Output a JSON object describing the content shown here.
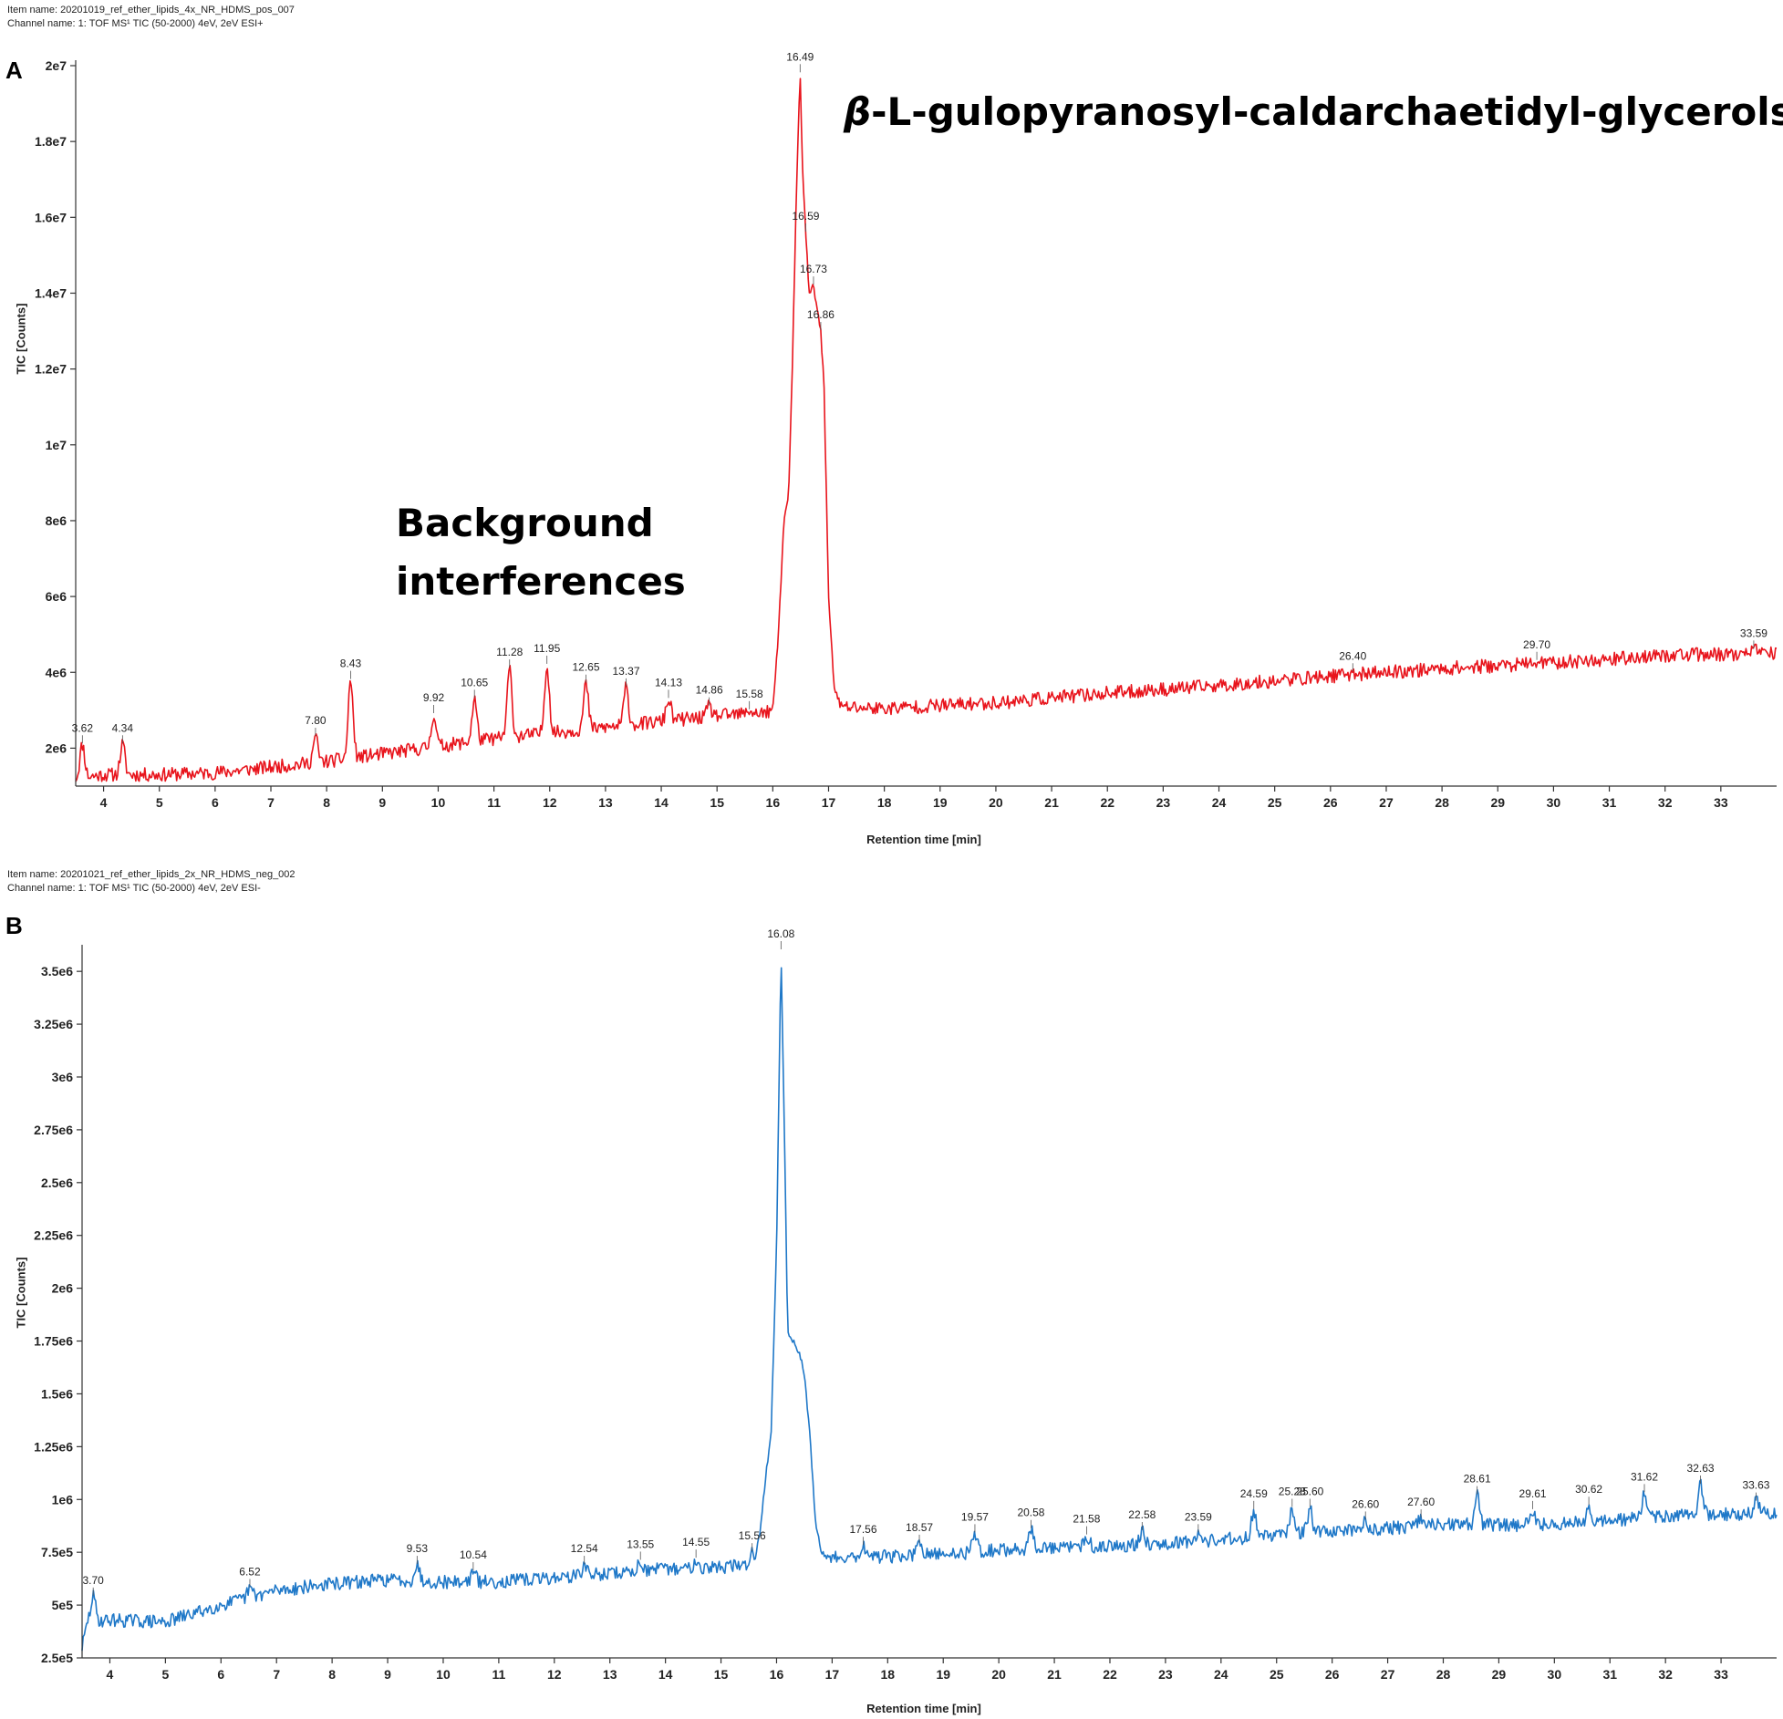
{
  "panels": [
    {
      "letter": "A",
      "item_name": "Item name: 20201019_ref_ether_lipids_4x_NR_HDMS_pos_007",
      "channel_name": "Channel name: 1: TOF MS¹ TIC (50-2000) 4eV, 2eV ESI+",
      "ylabel": "TIC [Counts]",
      "xlabel": "Retention time [min]",
      "annotations": {
        "beta": "β",
        "title": "-L-gulopyranosyl-caldarchaetidyl-glycerols",
        "background_line1": "Background",
        "background_line2": "interferences"
      }
    },
    {
      "letter": "B",
      "item_name": "Item name: 20201021_ref_ether_lipids_2x_NR_HDMS_neg_002",
      "channel_name": "Channel name: 1: TOF MS¹ TIC (50-2000) 4eV, 2eV ESI-",
      "ylabel": "TIC [Counts]",
      "xlabel": "Retention time [min]"
    }
  ],
  "chart_data": [
    {
      "type": "line",
      "panel": "A",
      "color": "#e8141c",
      "xlabel": "Retention time [min]",
      "ylabel": "TIC [Counts]",
      "xlim": [
        3.5,
        34.0
      ],
      "ylim": [
        1000000.0,
        20000000.0
      ],
      "x_ticks": [
        4,
        5,
        6,
        7,
        8,
        9,
        10,
        11,
        12,
        13,
        14,
        15,
        16,
        17,
        18,
        19,
        20,
        21,
        22,
        23,
        24,
        25,
        26,
        27,
        28,
        29,
        30,
        31,
        32,
        33
      ],
      "y_ticks": [
        {
          "value": 2000000,
          "label": "2e6"
        },
        {
          "value": 4000000,
          "label": "4e6"
        },
        {
          "value": 6000000,
          "label": "6e6"
        },
        {
          "value": 8000000,
          "label": "8e6"
        },
        {
          "value": 10000000,
          "label": "1e7"
        },
        {
          "value": 12000000,
          "label": "1.2e7"
        },
        {
          "value": 14000000,
          "label": "1.4e7"
        },
        {
          "value": 16000000,
          "label": "1.6e7"
        },
        {
          "value": 18000000,
          "label": "1.8e7"
        },
        {
          "value": 20000000,
          "label": "2e7"
        }
      ],
      "baseline": [
        [
          3.5,
          1200000.0
        ],
        [
          4.0,
          1300000.0
        ],
        [
          5.0,
          1300000.0
        ],
        [
          6.0,
          1350000.0
        ],
        [
          7.0,
          1500000.0
        ],
        [
          8.0,
          1650000.0
        ],
        [
          9.0,
          1850000.0
        ],
        [
          10.0,
          2050000.0
        ],
        [
          11.0,
          2250000.0
        ],
        [
          12.0,
          2400000.0
        ],
        [
          13.0,
          2550000.0
        ],
        [
          14.0,
          2700000.0
        ],
        [
          15.0,
          2850000.0
        ],
        [
          16.0,
          2950000.0
        ],
        [
          17.0,
          3100000.0
        ],
        [
          18.0,
          3050000.0
        ],
        [
          20.0,
          3200000.0
        ],
        [
          22.0,
          3450000.0
        ],
        [
          24.0,
          3650000.0
        ],
        [
          26.0,
          3900000.0
        ],
        [
          28.0,
          4100000.0
        ],
        [
          30.0,
          4250000.0
        ],
        [
          32.0,
          4450000.0
        ],
        [
          34.0,
          4500000.0
        ]
      ],
      "main_peak": [
        [
          16.0,
          3000000.0
        ],
        [
          16.1,
          5000000.0
        ],
        [
          16.2,
          8000000.0
        ],
        [
          16.28,
          8600000.0
        ],
        [
          16.35,
          12000000.0
        ],
        [
          16.42,
          16500000.0
        ],
        [
          16.49,
          19800000.0
        ],
        [
          16.54,
          17000000.0
        ],
        [
          16.59,
          15600000.0
        ],
        [
          16.65,
          14000000.0
        ],
        [
          16.73,
          14200000.0
        ],
        [
          16.8,
          13500000.0
        ],
        [
          16.86,
          13000000.0
        ],
        [
          16.92,
          11500000.0
        ],
        [
          17.0,
          6000000.0
        ],
        [
          17.1,
          3600000.0
        ],
        [
          17.2,
          3200000.0
        ]
      ],
      "peaks": [
        {
          "rt": 3.62,
          "height": 2100000.0,
          "label": "3.62"
        },
        {
          "rt": 4.34,
          "height": 2100000.0,
          "label": "4.34"
        },
        {
          "rt": 7.8,
          "height": 2300000.0,
          "label": "7.80"
        },
        {
          "rt": 8.43,
          "height": 3800000.0,
          "label": "8.43"
        },
        {
          "rt": 9.92,
          "height": 2900000.0,
          "label": "9.92"
        },
        {
          "rt": 10.65,
          "height": 3300000.0,
          "label": "10.65"
        },
        {
          "rt": 11.28,
          "height": 4100000.0,
          "label": "11.28"
        },
        {
          "rt": 11.95,
          "height": 4200000.0,
          "label": "11.95"
        },
        {
          "rt": 12.65,
          "height": 3700000.0,
          "label": "12.65"
        },
        {
          "rt": 13.37,
          "height": 3600000.0,
          "label": "13.37"
        },
        {
          "rt": 14.13,
          "height": 3300000.0,
          "label": "14.13"
        },
        {
          "rt": 14.86,
          "height": 3100000.0,
          "label": "14.86"
        },
        {
          "rt": 15.58,
          "height": 3000000.0,
          "label": "15.58"
        },
        {
          "rt": 16.49,
          "height": 19800000.0,
          "label": "16.49"
        },
        {
          "rt": 16.59,
          "height": 15600000.0,
          "label": "16.59"
        },
        {
          "rt": 16.73,
          "height": 14200000.0,
          "label": "16.73"
        },
        {
          "rt": 16.86,
          "height": 13000000.0,
          "label": "16.86"
        },
        {
          "rt": 26.4,
          "height": 4000000.0,
          "label": "26.40"
        },
        {
          "rt": 29.7,
          "height": 4300000.0,
          "label": "29.70"
        },
        {
          "rt": 33.59,
          "height": 4600000.0,
          "label": "33.59"
        }
      ]
    },
    {
      "type": "line",
      "panel": "B",
      "color": "#1f78c8",
      "xlabel": "Retention time [min]",
      "ylabel": "TIC [Counts]",
      "xlim": [
        3.5,
        34.0
      ],
      "ylim": [
        250000.0,
        3600000.0
      ],
      "x_ticks": [
        4,
        5,
        6,
        7,
        8,
        9,
        10,
        11,
        12,
        13,
        14,
        15,
        16,
        17,
        18,
        19,
        20,
        21,
        22,
        23,
        24,
        25,
        26,
        27,
        28,
        29,
        30,
        31,
        32,
        33
      ],
      "y_ticks": [
        {
          "value": 250000,
          "label": "2.5e5"
        },
        {
          "value": 500000,
          "label": "5e5"
        },
        {
          "value": 750000,
          "label": "7.5e5"
        },
        {
          "value": 1000000,
          "label": "1e6"
        },
        {
          "value": 1250000,
          "label": "1.25e6"
        },
        {
          "value": 1500000,
          "label": "1.5e6"
        },
        {
          "value": 1750000,
          "label": "1.75e6"
        },
        {
          "value": 2000000,
          "label": "2e6"
        },
        {
          "value": 2250000,
          "label": "2.25e6"
        },
        {
          "value": 2500000,
          "label": "2.5e6"
        },
        {
          "value": 2750000,
          "label": "2.75e6"
        },
        {
          "value": 3000000,
          "label": "3e6"
        },
        {
          "value": 3250000,
          "label": "3.25e6"
        },
        {
          "value": 3500000,
          "label": "3.5e6"
        }
      ],
      "baseline": [
        [
          3.5,
          300000.0
        ],
        [
          3.6,
          420000.0
        ],
        [
          4.0,
          430000.0
        ],
        [
          5.0,
          420000.0
        ],
        [
          6.0,
          500000.0
        ],
        [
          7.0,
          570000.0
        ],
        [
          8.0,
          600000.0
        ],
        [
          9.0,
          620000.0
        ],
        [
          10.0,
          610000.0
        ],
        [
          11.0,
          610000.0
        ],
        [
          12.0,
          630000.0
        ],
        [
          13.0,
          650000.0
        ],
        [
          14.0,
          670000.0
        ],
        [
          15.0,
          680000.0
        ],
        [
          15.5,
          690000.0
        ],
        [
          17.0,
          730000.0
        ],
        [
          18.0,
          730000.0
        ],
        [
          19.0,
          740000.0
        ],
        [
          20.0,
          760000.0
        ],
        [
          22.0,
          780000.0
        ],
        [
          24.0,
          810000.0
        ],
        [
          26.0,
          850000.0
        ],
        [
          28.0,
          880000.0
        ],
        [
          30.0,
          880000.0
        ],
        [
          32.0,
          920000.0
        ],
        [
          34.0,
          940000.0
        ]
      ],
      "main_peak": [
        [
          15.6,
          700000.0
        ],
        [
          15.7,
          850000.0
        ],
        [
          15.8,
          1100000.0
        ],
        [
          15.9,
          1300000.0
        ],
        [
          16.0,
          2200000.0
        ],
        [
          16.08,
          3600000.0
        ],
        [
          16.15,
          2600000.0
        ],
        [
          16.2,
          1800000.0
        ],
        [
          16.3,
          1750000.0
        ],
        [
          16.4,
          1700000.0
        ],
        [
          16.5,
          1600000.0
        ],
        [
          16.6,
          1300000.0
        ],
        [
          16.7,
          900000.0
        ],
        [
          16.8,
          750000.0
        ],
        [
          16.95,
          720000.0
        ]
      ],
      "peaks": [
        {
          "rt": 3.7,
          "height": 540000.0,
          "label": "3.70"
        },
        {
          "rt": 6.52,
          "height": 580000.0,
          "label": "6.52"
        },
        {
          "rt": 9.53,
          "height": 690000.0,
          "label": "9.53"
        },
        {
          "rt": 10.54,
          "height": 660000.0,
          "label": "10.54"
        },
        {
          "rt": 12.54,
          "height": 690000.0,
          "label": "12.54"
        },
        {
          "rt": 13.55,
          "height": 710000.0,
          "label": "13.55"
        },
        {
          "rt": 14.55,
          "height": 720000.0,
          "label": "14.55"
        },
        {
          "rt": 15.56,
          "height": 750000.0,
          "label": "15.56"
        },
        {
          "rt": 16.08,
          "height": 3600000.0,
          "label": "16.08"
        },
        {
          "rt": 17.56,
          "height": 780000.0,
          "label": "17.56"
        },
        {
          "rt": 18.57,
          "height": 790000.0,
          "label": "18.57"
        },
        {
          "rt": 19.57,
          "height": 840000.0,
          "label": "19.57"
        },
        {
          "rt": 20.58,
          "height": 860000.0,
          "label": "20.58"
        },
        {
          "rt": 21.58,
          "height": 830000.0,
          "label": "21.58"
        },
        {
          "rt": 22.58,
          "height": 850000.0,
          "label": "22.58"
        },
        {
          "rt": 23.59,
          "height": 840000.0,
          "label": "23.59"
        },
        {
          "rt": 24.59,
          "height": 950000.0,
          "label": "24.59"
        },
        {
          "rt": 25.28,
          "height": 960000.0,
          "label": "25.28"
        },
        {
          "rt": 25.6,
          "height": 960000.0,
          "label": "25.60"
        },
        {
          "rt": 26.6,
          "height": 900000.0,
          "label": "26.60"
        },
        {
          "rt": 27.6,
          "height": 910000.0,
          "label": "27.60"
        },
        {
          "rt": 28.61,
          "height": 1020000.0,
          "label": "28.61"
        },
        {
          "rt": 29.61,
          "height": 950000.0,
          "label": "29.61"
        },
        {
          "rt": 30.62,
          "height": 970000.0,
          "label": "30.62"
        },
        {
          "rt": 31.62,
          "height": 1030000.0,
          "label": "31.62"
        },
        {
          "rt": 32.63,
          "height": 1070000.0,
          "label": "32.63"
        },
        {
          "rt": 33.63,
          "height": 990000.0,
          "label": "33.63"
        }
      ]
    }
  ]
}
